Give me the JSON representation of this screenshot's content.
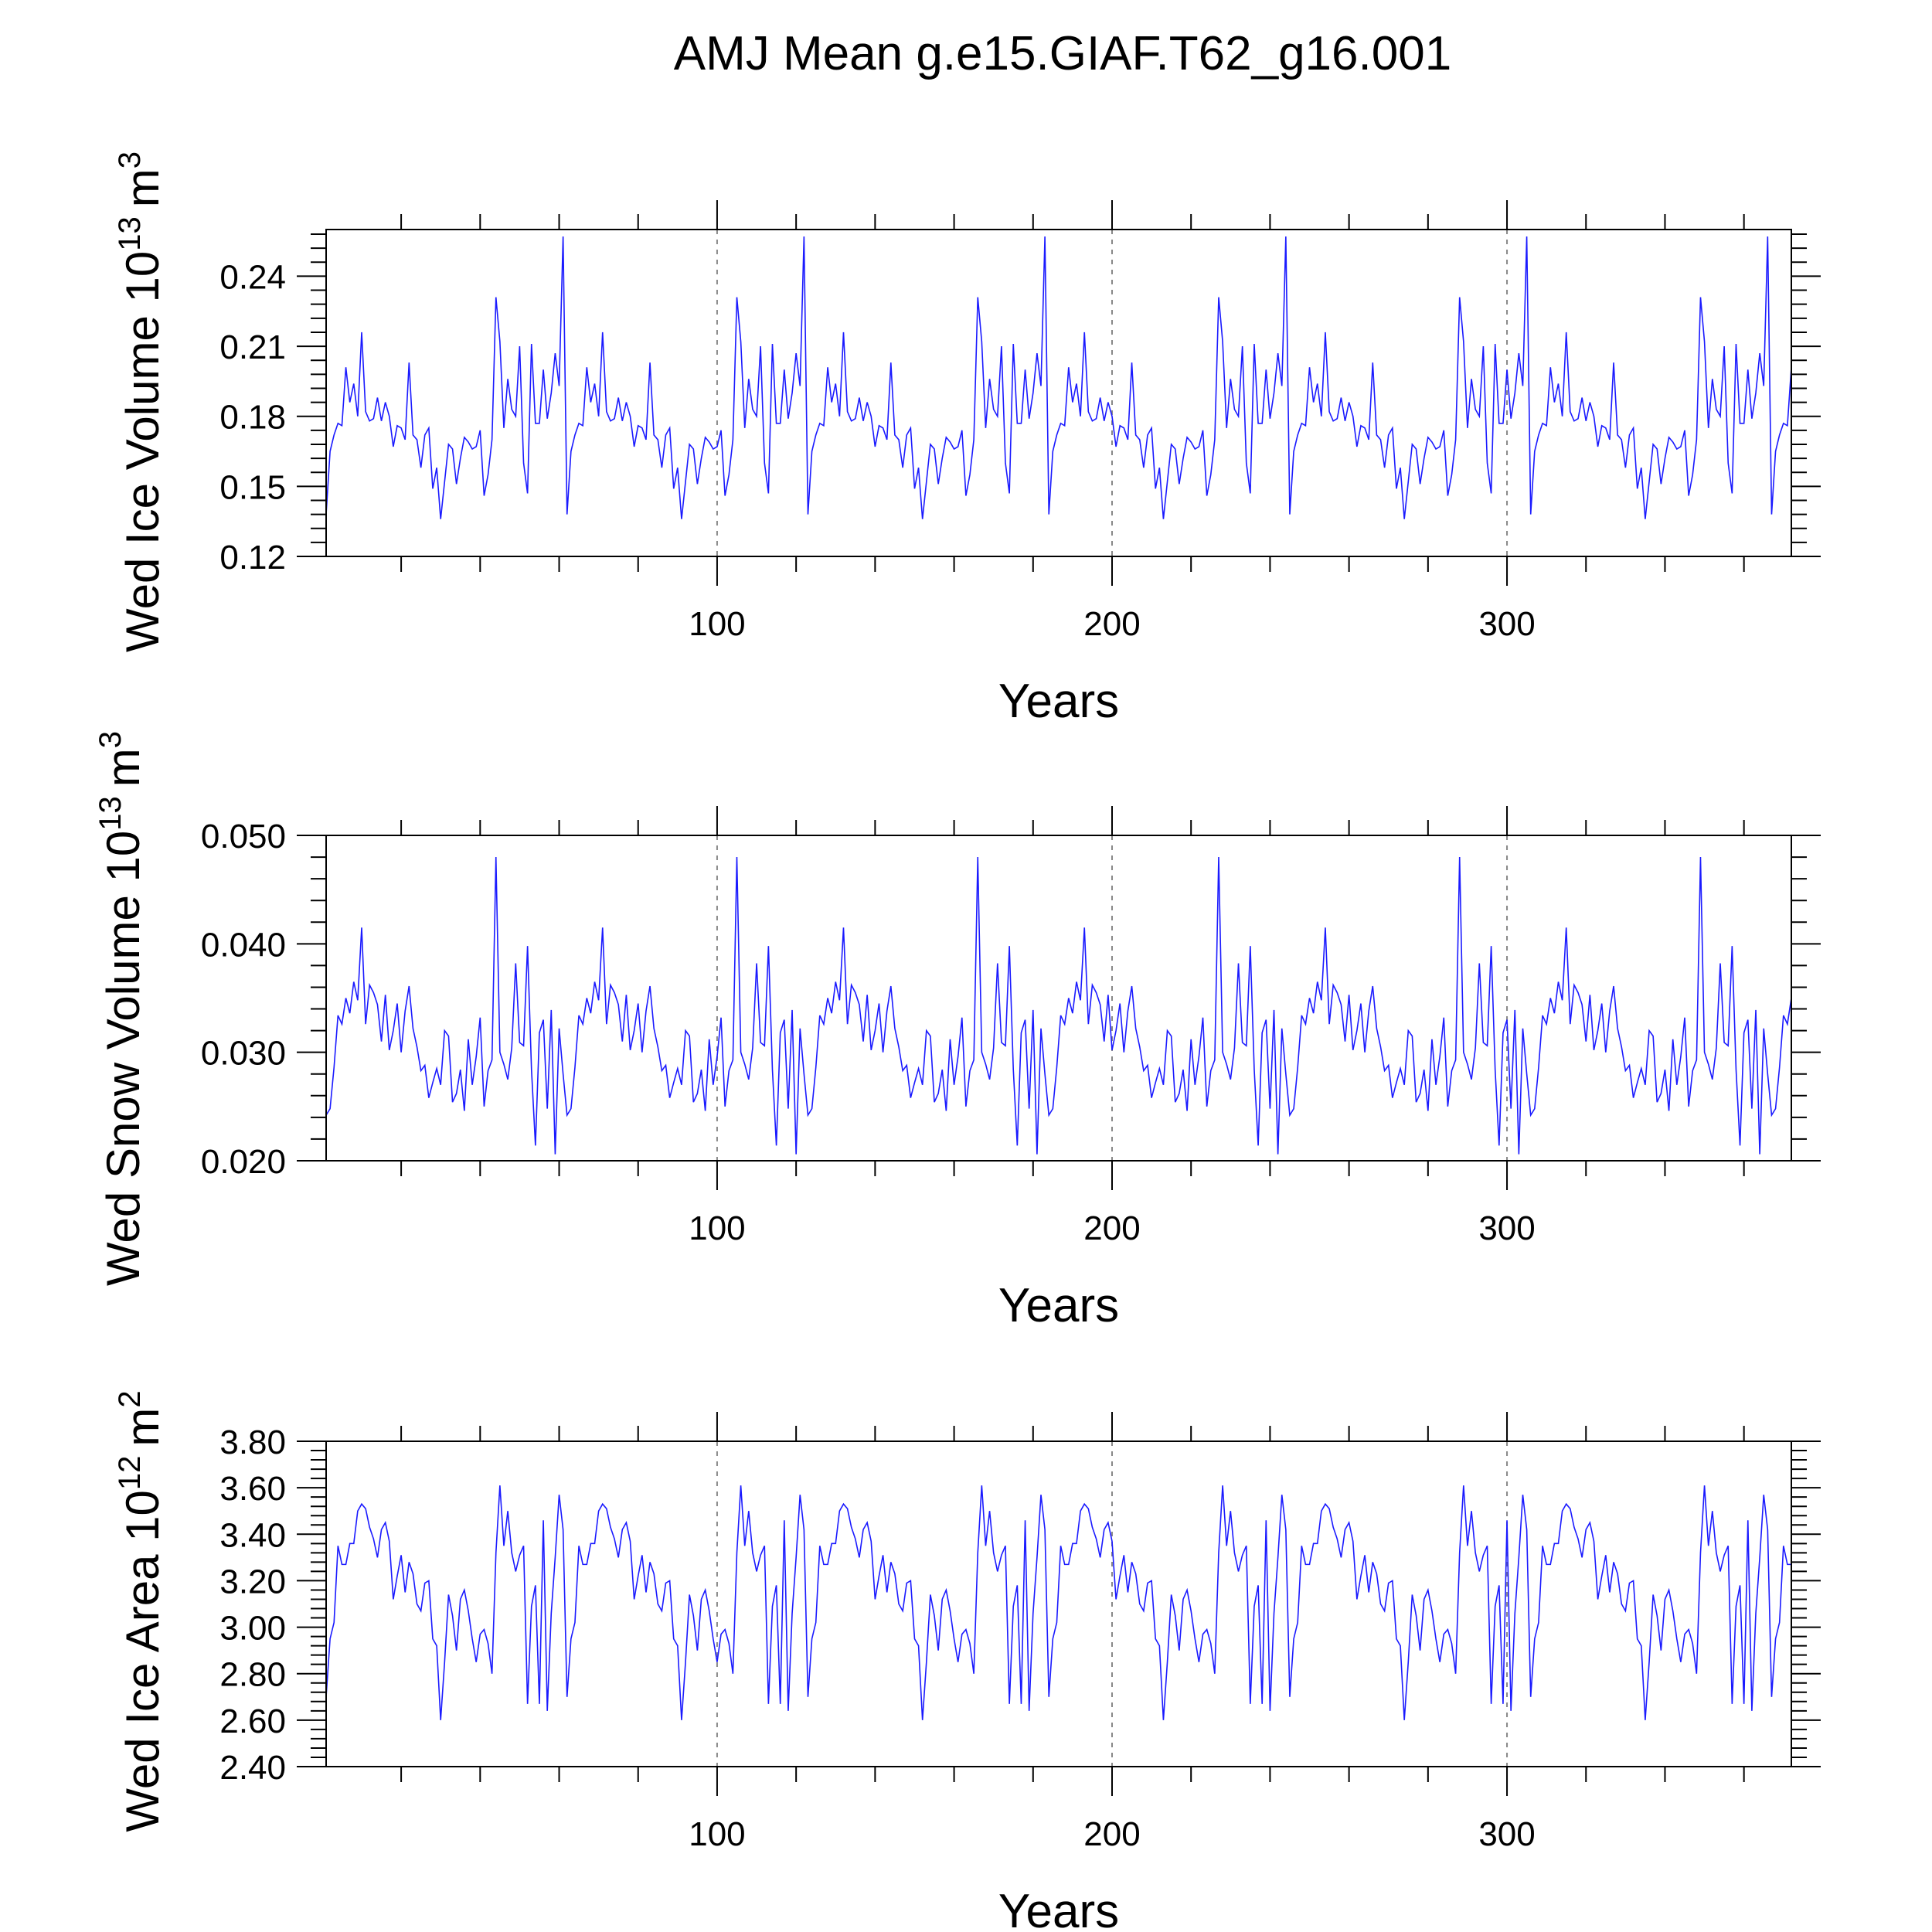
{
  "title": "AMJ Mean g.e15.GIAF.T62_g16.001",
  "chart_data": [
    {
      "type": "line",
      "ylabel": "Wed Ice Volume 10",
      "ylabel_sup": "13",
      "ylabel_unit": "m",
      "ylabel_unit_sup": "3",
      "xlabel": "Years",
      "xlim": [
        1,
        372
      ],
      "ylim": [
        0.12,
        0.26
      ],
      "yticks": [
        0.12,
        0.15,
        0.18,
        0.21,
        0.24
      ],
      "ytick_labels": [
        "0.12",
        "0.15",
        "0.18",
        "0.21",
        "0.24"
      ],
      "xticks": [
        100,
        200,
        300
      ],
      "xtick_labels": [
        "100",
        "200",
        "300"
      ],
      "color": "#1a1aff",
      "segment": [
        0.138,
        0.165,
        0.172,
        0.177,
        0.176,
        0.201,
        0.186,
        0.194,
        0.18,
        0.216,
        0.182,
        0.178,
        0.179,
        0.188,
        0.178,
        0.186,
        0.18,
        0.167,
        0.176,
        0.175,
        0.17,
        0.203,
        0.172,
        0.17,
        0.158,
        0.172,
        0.175,
        0.149,
        0.158,
        0.136,
        0.152,
        0.168,
        0.166,
        0.151,
        0.162,
        0.171,
        0.169,
        0.166,
        0.167,
        0.174,
        0.146,
        0.155,
        0.17,
        0.231,
        0.212,
        0.175,
        0.196,
        0.183,
        0.18,
        0.21,
        0.16,
        0.147,
        0.211,
        0.177,
        0.177,
        0.2,
        0.179,
        0.19,
        0.207,
        0.193,
        0.257
      ],
      "series": [
        {
          "name": "Wed Ice Volume",
          "x": "1..372",
          "note": "61-year forcing cycle repeated 6 times (see segment)"
        }
      ]
    },
    {
      "type": "line",
      "ylabel": "Wed Snow Volume 10",
      "ylabel_sup": "13",
      "ylabel_unit": "m",
      "ylabel_unit_sup": "3",
      "xlabel": "Years",
      "xlim": [
        1,
        372
      ],
      "ylim": [
        0.02,
        0.05
      ],
      "yticks": [
        0.02,
        0.03,
        0.04,
        0.05
      ],
      "ytick_labels": [
        "0.020",
        "0.030",
        "0.040",
        "0.050"
      ],
      "xticks": [
        100,
        200,
        300
      ],
      "xtick_labels": [
        "100",
        "200",
        "300"
      ],
      "color": "#1a1aff",
      "segment": [
        0.0242,
        0.0248,
        0.0286,
        0.0334,
        0.0326,
        0.035,
        0.0336,
        0.0365,
        0.0348,
        0.0415,
        0.0326,
        0.0362,
        0.0355,
        0.0344,
        0.031,
        0.0353,
        0.0302,
        0.032,
        0.0345,
        0.03,
        0.0338,
        0.0361,
        0.0322,
        0.0305,
        0.0283,
        0.0288,
        0.0258,
        0.0272,
        0.0285,
        0.027,
        0.032,
        0.0315,
        0.0254,
        0.0262,
        0.0284,
        0.0246,
        0.0312,
        0.027,
        0.0296,
        0.0332,
        0.025,
        0.0283,
        0.0293,
        0.048,
        0.03,
        0.0289,
        0.0275,
        0.0304,
        0.0382,
        0.0309,
        0.0306,
        0.0398,
        0.0284,
        0.0214,
        0.0318,
        0.033,
        0.0248,
        0.0339,
        0.0206,
        0.0322,
        0.028
      ],
      "series": [
        {
          "name": "Wed Snow Volume",
          "x": "1..372",
          "note": "61-year forcing cycle repeated 6 times (see segment)"
        }
      ]
    },
    {
      "type": "line",
      "ylabel": "Wed Ice Area 10",
      "ylabel_sup": "12",
      "ylabel_unit": "m",
      "ylabel_unit_sup": "2",
      "xlabel": "Years",
      "xlim": [
        1,
        372
      ],
      "ylim": [
        2.4,
        3.8
      ],
      "yticks": [
        2.4,
        2.6,
        2.8,
        3.0,
        3.2,
        3.4,
        3.6,
        3.8
      ],
      "ytick_labels": [
        "2.40",
        "2.60",
        "2.80",
        "3.00",
        "3.20",
        "3.40",
        "3.60",
        "3.80"
      ],
      "xticks": [
        100,
        200,
        300
      ],
      "xtick_labels": [
        "100",
        "200",
        "300"
      ],
      "color": "#1a1aff",
      "segment": [
        2.7,
        2.95,
        3.02,
        3.35,
        3.27,
        3.27,
        3.36,
        3.36,
        3.5,
        3.53,
        3.51,
        3.43,
        3.38,
        3.3,
        3.42,
        3.45,
        3.37,
        3.12,
        3.22,
        3.31,
        3.15,
        3.28,
        3.23,
        3.1,
        3.07,
        3.19,
        3.2,
        2.95,
        2.92,
        2.6,
        2.85,
        3.14,
        3.05,
        2.9,
        3.12,
        3.16,
        3.07,
        2.95,
        2.85,
        2.97,
        2.99,
        2.93,
        2.8,
        3.32,
        3.61,
        3.35,
        3.5,
        3.32,
        3.24,
        3.31,
        3.35,
        2.67,
        3.09,
        3.18,
        2.67,
        3.46,
        2.64,
        3.06,
        3.3,
        3.57,
        3.42
      ]
    }
  ]
}
